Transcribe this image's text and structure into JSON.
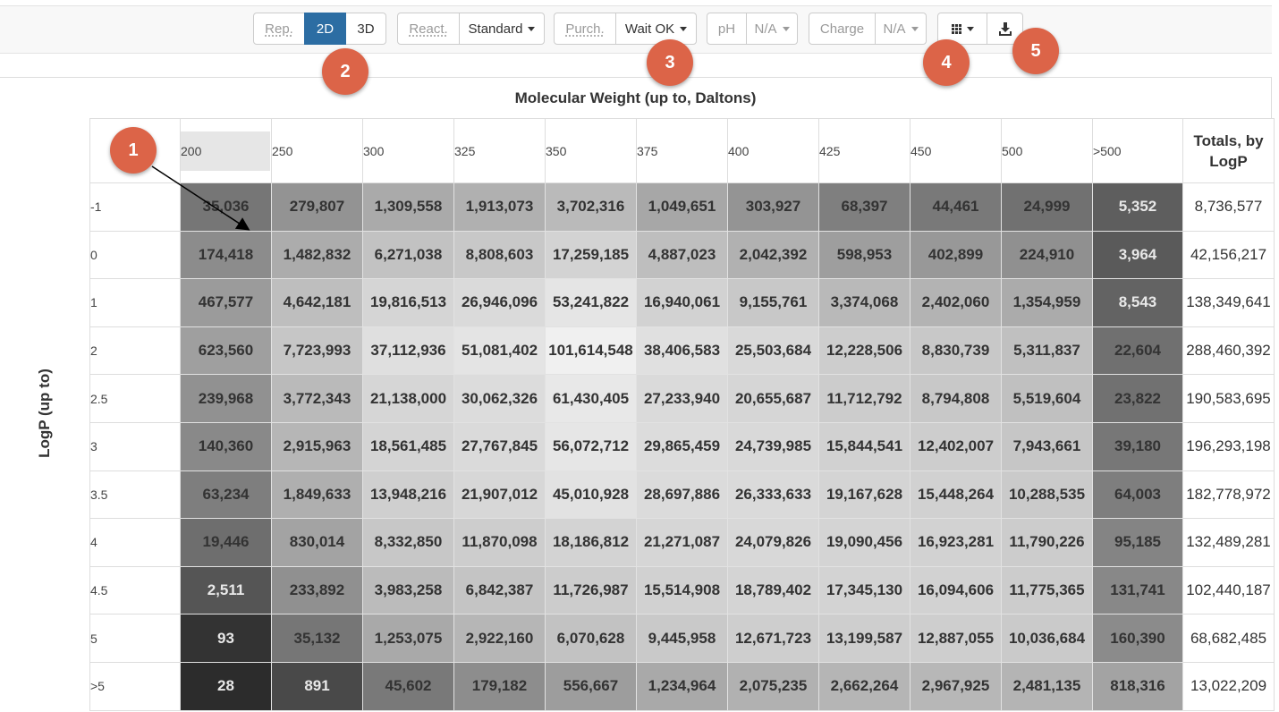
{
  "toolbar": {
    "rep": {
      "label": "Rep.",
      "opt2d": "2D",
      "opt3d": "3D"
    },
    "react": {
      "label": "React.",
      "value": "Standard"
    },
    "purch": {
      "label": "Purch.",
      "value": "Wait OK"
    },
    "ph": {
      "label": "pH",
      "value": "N/A"
    },
    "charge": {
      "label": "Charge",
      "value": "N/A"
    },
    "grid_icon": "grid-icon",
    "download_icon": "download-icon"
  },
  "callouts": [
    "1",
    "2",
    "3",
    "4",
    "5"
  ],
  "table": {
    "title": "Molecular Weight (up to, Daltons)",
    "row_axis": "LogP (up to)",
    "totals_header": "Totals, by LogP",
    "columns": [
      "200",
      "250",
      "300",
      "325",
      "350",
      "375",
      "400",
      "425",
      "450",
      "500",
      ">500"
    ],
    "rows": [
      {
        "logp": "-1",
        "values": [
          "35,036",
          "279,807",
          "1,309,558",
          "1,913,073",
          "3,702,316",
          "1,049,651",
          "303,927",
          "68,397",
          "44,461",
          "24,999",
          "5,352"
        ],
        "total": "8,736,577"
      },
      {
        "logp": "0",
        "values": [
          "174,418",
          "1,482,832",
          "6,271,038",
          "8,808,603",
          "17,259,185",
          "4,887,023",
          "2,042,392",
          "598,953",
          "402,899",
          "224,910",
          "3,964"
        ],
        "total": "42,156,217"
      },
      {
        "logp": "1",
        "values": [
          "467,577",
          "4,642,181",
          "19,816,513",
          "26,946,096",
          "53,241,822",
          "16,940,061",
          "9,155,761",
          "3,374,068",
          "2,402,060",
          "1,354,959",
          "8,543"
        ],
        "total": "138,349,641"
      },
      {
        "logp": "2",
        "values": [
          "623,560",
          "7,723,993",
          "37,112,936",
          "51,081,402",
          "101,614,548",
          "38,406,583",
          "25,503,684",
          "12,228,506",
          "8,830,739",
          "5,311,837",
          "22,604"
        ],
        "total": "288,460,392"
      },
      {
        "logp": "2.5",
        "values": [
          "239,968",
          "3,772,343",
          "21,138,000",
          "30,062,326",
          "61,430,405",
          "27,233,940",
          "20,655,687",
          "11,712,792",
          "8,794,808",
          "5,519,604",
          "23,822"
        ],
        "total": "190,583,695"
      },
      {
        "logp": "3",
        "values": [
          "140,360",
          "2,915,963",
          "18,561,485",
          "27,767,845",
          "56,072,712",
          "29,865,459",
          "24,739,985",
          "15,844,541",
          "12,402,007",
          "7,943,661",
          "39,180"
        ],
        "total": "196,293,198"
      },
      {
        "logp": "3.5",
        "values": [
          "63,234",
          "1,849,633",
          "13,948,216",
          "21,907,012",
          "45,010,928",
          "28,697,886",
          "26,333,633",
          "19,167,628",
          "15,448,264",
          "10,288,535",
          "64,003"
        ],
        "total": "182,778,972"
      },
      {
        "logp": "4",
        "values": [
          "19,446",
          "830,014",
          "8,332,850",
          "11,870,098",
          "18,186,812",
          "21,271,087",
          "24,079,826",
          "19,090,456",
          "16,923,281",
          "11,790,226",
          "95,185"
        ],
        "total": "132,489,281"
      },
      {
        "logp": "4.5",
        "values": [
          "2,511",
          "233,892",
          "3,983,258",
          "6,842,387",
          "11,726,987",
          "15,514,908",
          "18,789,402",
          "17,345,130",
          "16,094,606",
          "11,775,365",
          "131,741"
        ],
        "total": "102,440,187"
      },
      {
        "logp": "5",
        "values": [
          "93",
          "35,132",
          "1,253,075",
          "2,922,160",
          "6,070,628",
          "9,445,958",
          "12,671,723",
          "13,199,587",
          "12,887,055",
          "10,036,684",
          "160,390"
        ],
        "total": "68,682,485"
      },
      {
        "logp": ">5",
        "values": [
          "28",
          "891",
          "45,602",
          "179,182",
          "556,667",
          "1,234,964",
          "2,075,235",
          "2,662,264",
          "2,967,925",
          "2,481,135",
          "818,316"
        ],
        "total": "13,022,209"
      }
    ]
  },
  "colors": {
    "active": "#2c6da3",
    "callout": "#dc6448"
  }
}
